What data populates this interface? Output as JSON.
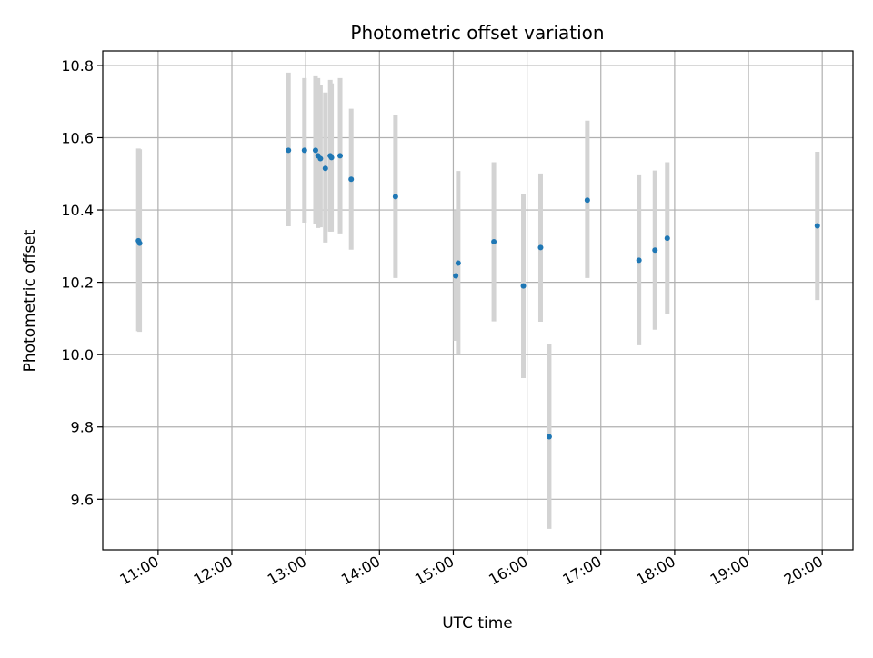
{
  "chart_data": {
    "type": "scatter",
    "title": "Photometric offset variation",
    "xlabel": "UTC time",
    "ylabel": "Photometric offset",
    "x_ticks": [
      "11:00",
      "12:00",
      "13:00",
      "14:00",
      "15:00",
      "16:00",
      "17:00",
      "18:00",
      "19:00",
      "20:00"
    ],
    "y_ticks": [
      "9.6",
      "9.8",
      "10.0",
      "10.2",
      "10.4",
      "10.6",
      "10.8"
    ],
    "xlim": [
      "10:15",
      "20:25"
    ],
    "ylim": [
      9.46,
      10.84
    ],
    "grid": true,
    "error_bars": true,
    "colors": {
      "point": "#1f77b4",
      "errorbar": "#d3d3d3",
      "grid": "#b0b0b0"
    },
    "points": [
      {
        "x": "10:44",
        "y": 10.315,
        "yerr_low": 0.25,
        "yerr_high": 0.255
      },
      {
        "x": "10:45",
        "y": 10.308,
        "yerr_low": 0.245,
        "yerr_high": 0.26
      },
      {
        "x": "12:46",
        "y": 10.565,
        "yerr_low": 0.21,
        "yerr_high": 0.215
      },
      {
        "x": "12:59",
        "y": 10.565,
        "yerr_low": 0.2,
        "yerr_high": 0.2
      },
      {
        "x": "13:08",
        "y": 10.565,
        "yerr_low": 0.205,
        "yerr_high": 0.205
      },
      {
        "x": "13:10",
        "y": 10.55,
        "yerr_low": 0.2,
        "yerr_high": 0.215
      },
      {
        "x": "13:12",
        "y": 10.542,
        "yerr_low": 0.19,
        "yerr_high": 0.205
      },
      {
        "x": "13:16",
        "y": 10.515,
        "yerr_low": 0.205,
        "yerr_high": 0.21
      },
      {
        "x": "13:20",
        "y": 10.55,
        "yerr_low": 0.21,
        "yerr_high": 0.21
      },
      {
        "x": "13:21",
        "y": 10.545,
        "yerr_low": 0.205,
        "yerr_high": 0.205
      },
      {
        "x": "13:28",
        "y": 10.55,
        "yerr_low": 0.215,
        "yerr_high": 0.215
      },
      {
        "x": "13:37",
        "y": 10.485,
        "yerr_low": 0.195,
        "yerr_high": 0.195
      },
      {
        "x": "14:13",
        "y": 10.437,
        "yerr_low": 0.225,
        "yerr_high": 0.225
      },
      {
        "x": "15:02",
        "y": 10.218,
        "yerr_low": 0.18,
        "yerr_high": 0.18
      },
      {
        "x": "15:04",
        "y": 10.253,
        "yerr_low": 0.25,
        "yerr_high": 0.255
      },
      {
        "x": "15:33",
        "y": 10.312,
        "yerr_low": 0.22,
        "yerr_high": 0.22
      },
      {
        "x": "15:57",
        "y": 10.19,
        "yerr_low": 0.255,
        "yerr_high": 0.255
      },
      {
        "x": "16:11",
        "y": 10.296,
        "yerr_low": 0.205,
        "yerr_high": 0.205
      },
      {
        "x": "16:18",
        "y": 9.773,
        "yerr_low": 0.255,
        "yerr_high": 0.255
      },
      {
        "x": "16:49",
        "y": 10.427,
        "yerr_low": 0.215,
        "yerr_high": 0.22
      },
      {
        "x": "17:31",
        "y": 10.261,
        "yerr_low": 0.235,
        "yerr_high": 0.235
      },
      {
        "x": "17:44",
        "y": 10.289,
        "yerr_low": 0.22,
        "yerr_high": 0.22
      },
      {
        "x": "17:54",
        "y": 10.322,
        "yerr_low": 0.21,
        "yerr_high": 0.21
      },
      {
        "x": "19:56",
        "y": 10.356,
        "yerr_low": 0.205,
        "yerr_high": 0.205
      }
    ]
  }
}
